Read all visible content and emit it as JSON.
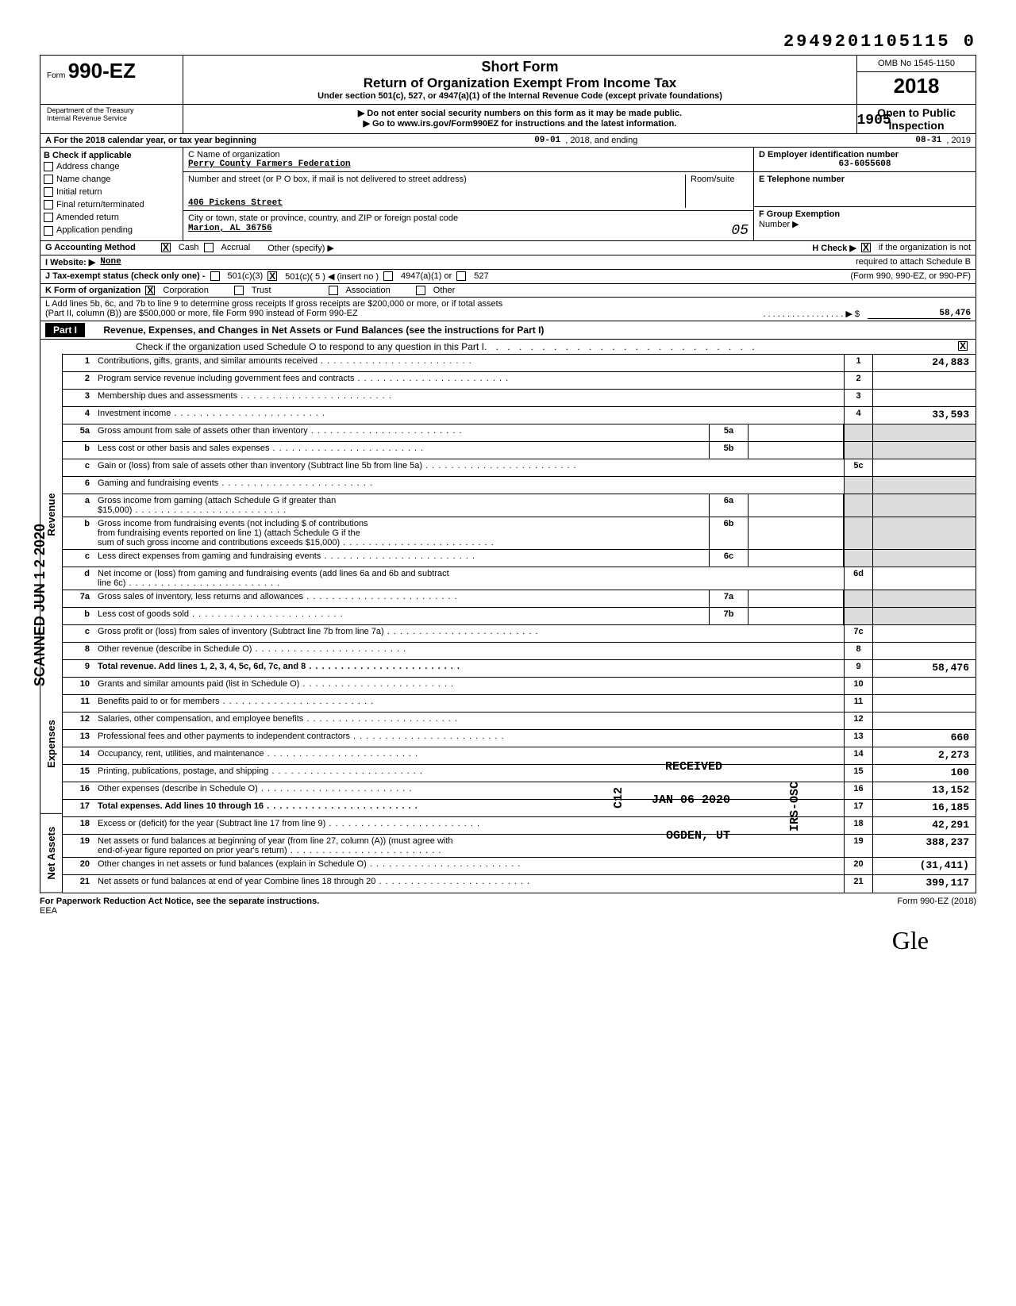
{
  "header_number": "2949201105115 0",
  "form": {
    "word": "Form",
    "number": "990-EZ",
    "title1": "Short Form",
    "title2": "Return of Organization Exempt From Income Tax",
    "subtitle": "Under section 501(c), 527, or 4947(a)(1) of the Internal Revenue Code (except private foundations)",
    "warn1": "▶ Do not enter social security numbers on this form as it may be made public.",
    "warn2": "▶ Go to www.irs.gov/Form990EZ for instructions and the latest information.",
    "omb": "OMB No 1545-1150",
    "year": "2018",
    "open": "Open to Public",
    "inspection": "Inspection",
    "dept1": "Department of the Treasury",
    "dept2": "Internal Revenue Service",
    "stamp": "1905"
  },
  "lineA": {
    "label": "A  For the 2018 calendar year, or tax year beginning",
    "begin": "09-01",
    "mid": ", 2018, and ending",
    "end": "08-31",
    "endyear": ", 2019"
  },
  "sectionB": {
    "label": "B  Check if applicable",
    "checks": [
      "Address change",
      "Name change",
      "Initial return",
      "Final return/terminated",
      "Amended return",
      "Application pending"
    ]
  },
  "sectionC": {
    "label": "C  Name of organization",
    "name": "Perry County Farmers Federation",
    "addr_label": "Number and street (or P O  box, if mail is not delivered to street address)",
    "addr": "406 Pickens Street",
    "room_label": "Room/suite",
    "city_label": "City or town, state or province, country, and ZIP or foreign postal code",
    "city": "Marion, AL 36756",
    "city_stamp": "05"
  },
  "sectionD": {
    "label": "D  Employer identification number",
    "ein": "63-6055608",
    "tel_label": "E  Telephone number",
    "grp_label": "F  Group Exemption",
    "grp_label2": "Number  ▶"
  },
  "lineG": {
    "label": "G  Accounting Method",
    "cash": "Cash",
    "accrual": "Accrual",
    "other": "Other (specify) ▶",
    "h_label": "H  Check ▶",
    "h_text": "if the organization is not"
  },
  "lineI": {
    "label": "I   Website:  ▶",
    "value": "None",
    "req": "required to attach Schedule B"
  },
  "lineJ": {
    "label": "J   Tax-exempt status (check only one) -",
    "opt1": "501(c)(3)",
    "opt2": "501(c)( 5  ) ◀ (insert no )",
    "opt3": "4947(a)(1) or",
    "opt4": "527",
    "note": "(Form 990, 990-EZ, or 990-PF)"
  },
  "lineK": {
    "label": "K  Form of organization",
    "opt1": "Corporation",
    "opt2": "Trust",
    "opt3": "Association",
    "opt4": "Other"
  },
  "lineL": {
    "text1": "L  Add lines 5b, 6c, and 7b to line 9 to determine gross receipts  If gross receipts are $200,000 or more, or if total assets",
    "text2": "(Part II, column (B)) are $500,000 or more, file Form 990 instead of Form 990-EZ",
    "dots": ". . . . . . . . . . . . . . . . .  ▶ $",
    "value": "58,476"
  },
  "part1": {
    "label": "Part I",
    "title": "Revenue, Expenses, and Changes in Net Assets or Fund Balances (see the instructions for Part I)",
    "check_text": "Check if the organization used Schedule O to respond to any question in this Part I"
  },
  "side_labels": {
    "revenue": "Revenue",
    "expenses": "Expenses",
    "netassets": "Net Assets",
    "scanned": "SCANNED JUN 1 2 2020"
  },
  "lines": {
    "l1": {
      "n": "1",
      "t": "Contributions, gifts, grants, and similar amounts received",
      "rn": "1",
      "v": "24,883"
    },
    "l2": {
      "n": "2",
      "t": "Program service revenue including government fees and contracts",
      "rn": "2",
      "v": ""
    },
    "l3": {
      "n": "3",
      "t": "Membership dues and assessments",
      "rn": "3",
      "v": ""
    },
    "l4": {
      "n": "4",
      "t": "Investment income",
      "rn": "4",
      "v": "33,593"
    },
    "l5a": {
      "n": "5a",
      "t": "Gross amount from sale of assets other than inventory",
      "ib": "5a"
    },
    "l5b": {
      "n": "b",
      "t": "Less  cost or other basis and sales expenses",
      "ib": "5b"
    },
    "l5c": {
      "n": "c",
      "t": "Gain or (loss) from sale of assets other than inventory (Subtract line 5b from line 5a)",
      "rn": "5c",
      "v": ""
    },
    "l6": {
      "n": "6",
      "t": "Gaming and fundraising events"
    },
    "l6a": {
      "n": "a",
      "t": "Gross income from gaming (attach Schedule G if greater than",
      "t2": "$15,000)",
      "ib": "6a"
    },
    "l6b": {
      "n": "b",
      "t": "Gross income from fundraising events (not including     $                              of contributions",
      "t2": "from fundraising events reported on line 1) (attach Schedule G if the",
      "t3": "sum of such gross income and contributions exceeds $15,000)",
      "ib": "6b"
    },
    "l6c": {
      "n": "c",
      "t": "Less  direct expenses from gaming and fundraising events",
      "ib": "6c"
    },
    "l6d": {
      "n": "d",
      "t": "Net income or (loss) from gaming and fundraising events (add lines 6a and 6b and subtract",
      "t2": "line 6c)",
      "rn": "6d",
      "v": ""
    },
    "l7a": {
      "n": "7a",
      "t": "Gross sales of inventory, less returns and allowances",
      "ib": "7a"
    },
    "l7b": {
      "n": "b",
      "t": "Less  cost of goods sold",
      "ib": "7b"
    },
    "l7c": {
      "n": "c",
      "t": "Gross profit or (loss) from sales of inventory (Subtract line 7b from line 7a)",
      "rn": "7c",
      "v": ""
    },
    "l8": {
      "n": "8",
      "t": "Other revenue (describe in Schedule O)",
      "rn": "8",
      "v": ""
    },
    "l9": {
      "n": "9",
      "t": "Total revenue.  Add lines 1, 2, 3, 4, 5c, 6d, 7c, and 8",
      "rn": "9",
      "v": "58,476",
      "bold": true
    },
    "l10": {
      "n": "10",
      "t": "Grants and similar amounts paid (list in Schedule O)",
      "rn": "10",
      "v": ""
    },
    "l11": {
      "n": "11",
      "t": "Benefits paid to or for members",
      "rn": "11",
      "v": ""
    },
    "l12": {
      "n": "12",
      "t": "Salaries, other compensation, and employee benefits",
      "rn": "12",
      "v": ""
    },
    "l13": {
      "n": "13",
      "t": "Professional fees and other payments to independent contractors",
      "rn": "13",
      "v": "660"
    },
    "l14": {
      "n": "14",
      "t": "Occupancy, rent, utilities, and maintenance",
      "rn": "14",
      "v": "2,273"
    },
    "l15": {
      "n": "15",
      "t": "Printing, publications, postage, and shipping",
      "rn": "15",
      "v": "100"
    },
    "l16": {
      "n": "16",
      "t": "Other expenses (describe in Schedule O)",
      "rn": "16",
      "v": "13,152"
    },
    "l17": {
      "n": "17",
      "t": "Total expenses.  Add lines 10 through 16",
      "rn": "17",
      "v": "16,185",
      "bold": true
    },
    "l18": {
      "n": "18",
      "t": "Excess or (deficit) for the year (Subtract line 17 from line 9)",
      "rn": "18",
      "v": "42,291"
    },
    "l19": {
      "n": "19",
      "t": "Net assets or fund balances at beginning of year (from line 27, column (A)) (must agree with",
      "t2": "end-of-year figure reported on prior year's return)",
      "rn": "19",
      "v": "388,237"
    },
    "l20": {
      "n": "20",
      "t": "Other changes in net assets or fund balances (explain in Schedule O)",
      "rn": "20",
      "v": "(31,411)"
    },
    "l21": {
      "n": "21",
      "t": "Net assets or fund balances at end of year  Combine lines 18 through 20",
      "rn": "21",
      "v": "399,117"
    }
  },
  "stamps": {
    "received": "RECEIVED",
    "date": "JAN 06 2020",
    "ogden": "OGDEN, UT",
    "irs": "IRS-OSC",
    "c12": "C12"
  },
  "footer": {
    "left": "For Paperwork Reduction Act Notice, see the separate instructions.",
    "eea": "EEA",
    "right": "Form 990-EZ (2018)"
  },
  "signature": "Gle"
}
